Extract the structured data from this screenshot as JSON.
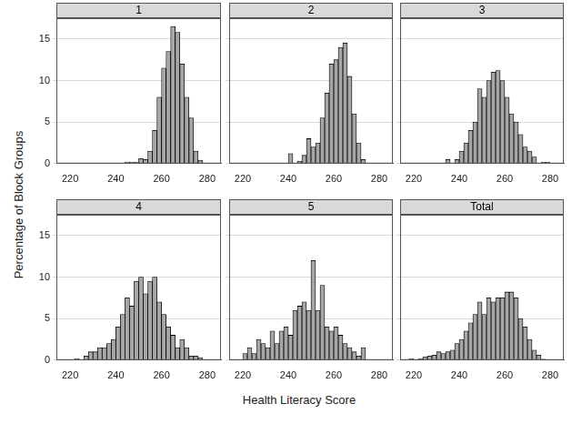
{
  "xlabel": "Health Literacy Score",
  "ylabel": "Percentage of Block Groups",
  "chart_data": [
    {
      "type": "histogram",
      "title": "1",
      "color": "#a6a6a6",
      "grid": true,
      "bins": [
        216,
        218,
        220,
        222,
        224,
        226,
        228,
        230,
        232,
        234,
        236,
        238,
        240,
        242,
        244,
        246,
        248,
        250,
        252,
        254,
        256,
        258,
        260,
        262,
        264,
        266,
        268,
        270,
        272,
        274,
        276,
        278,
        280,
        282
      ],
      "values": [
        0,
        0,
        0,
        0,
        0,
        0,
        0,
        0,
        0,
        0,
        0,
        0,
        0,
        0,
        0.2,
        0.2,
        0.2,
        0.6,
        0.5,
        1.5,
        4,
        8,
        11.5,
        13.5,
        16.5,
        15.8,
        12,
        8,
        5.5,
        1.5,
        0.4,
        0,
        0
      ],
      "xlim": [
        214,
        286
      ],
      "xticks": [
        220,
        240,
        260,
        280
      ],
      "ylim": [
        0,
        17.5
      ],
      "yticks": [
        0,
        5,
        10,
        15
      ]
    },
    {
      "type": "histogram",
      "title": "2",
      "color": "#a6a6a6",
      "grid": true,
      "tick_labels": "x",
      "bins": [
        216,
        218,
        220,
        222,
        224,
        226,
        228,
        230,
        232,
        234,
        236,
        238,
        240,
        242,
        244,
        246,
        248,
        250,
        252,
        254,
        256,
        258,
        260,
        262,
        264,
        266,
        268,
        270,
        272,
        274,
        276,
        278,
        280,
        282
      ],
      "values": [
        0,
        0,
        0,
        0,
        0,
        0,
        0,
        0,
        0,
        0,
        0,
        0,
        1.2,
        0,
        0.3,
        1,
        3,
        2,
        2.5,
        5.5,
        8.5,
        12,
        12.5,
        14,
        14.5,
        10.5,
        6,
        2.5,
        0.5,
        0,
        0,
        0,
        0
      ],
      "xlim": [
        214,
        286
      ],
      "xticks": [
        220,
        240,
        260,
        280
      ],
      "ylim": [
        0,
        17.5
      ],
      "yticks": [
        0,
        5,
        10,
        15
      ]
    },
    {
      "type": "histogram",
      "title": "3",
      "color": "#a6a6a6",
      "grid": true,
      "tick_labels": "x",
      "bins": [
        216,
        218,
        220,
        222,
        224,
        226,
        228,
        230,
        232,
        234,
        236,
        238,
        240,
        242,
        244,
        246,
        248,
        250,
        252,
        254,
        256,
        258,
        260,
        262,
        264,
        266,
        268,
        270,
        272,
        274,
        276,
        278,
        280,
        282
      ],
      "values": [
        0,
        0,
        0,
        0,
        0,
        0,
        0,
        0,
        0,
        0.5,
        0,
        0.5,
        1.5,
        2.5,
        4,
        5,
        9,
        8,
        10,
        11,
        11.2,
        10,
        8,
        6,
        5,
        3.5,
        2,
        1.5,
        0.8,
        0,
        0.2,
        0.2,
        0
      ],
      "xlim": [
        214,
        286
      ],
      "xticks": [
        220,
        240,
        260,
        280
      ],
      "ylim": [
        0,
        17.5
      ],
      "yticks": [
        0,
        5,
        10,
        15
      ]
    },
    {
      "type": "histogram",
      "title": "4",
      "color": "#a6a6a6",
      "grid": true,
      "bins": [
        216,
        218,
        220,
        222,
        224,
        226,
        228,
        230,
        232,
        234,
        236,
        238,
        240,
        242,
        244,
        246,
        248,
        250,
        252,
        254,
        256,
        258,
        260,
        262,
        264,
        266,
        268,
        270,
        272,
        274,
        276,
        278,
        280,
        282
      ],
      "values": [
        0,
        0,
        0,
        0.2,
        0,
        0.5,
        1,
        1,
        1.5,
        1.5,
        2,
        2.5,
        4,
        5.5,
        7.5,
        6.5,
        9.5,
        10,
        8,
        9.5,
        10,
        7,
        5.5,
        4,
        3,
        1.5,
        2.5,
        1.5,
        0.5,
        0.5,
        0.3,
        0,
        0
      ],
      "xlim": [
        214,
        286
      ],
      "xticks": [
        220,
        240,
        260,
        280
      ],
      "ylim": [
        0,
        17.5
      ],
      "yticks": [
        0,
        5,
        10,
        15
      ]
    },
    {
      "type": "histogram",
      "title": "5",
      "color": "#a6a6a6",
      "grid": true,
      "tick_labels": "x",
      "bins": [
        216,
        218,
        220,
        222,
        224,
        226,
        228,
        230,
        232,
        234,
        236,
        238,
        240,
        242,
        244,
        246,
        248,
        250,
        252,
        254,
        256,
        258,
        260,
        262,
        264,
        266,
        268,
        270,
        272,
        274,
        276,
        278,
        280,
        282
      ],
      "values": [
        0,
        0,
        0.8,
        1.5,
        0.8,
        2.5,
        2,
        1.5,
        3.5,
        2,
        3.5,
        4,
        3,
        6,
        6.5,
        7,
        6,
        12,
        6,
        9,
        4,
        3.5,
        4,
        3,
        2,
        1.5,
        1,
        0.5,
        1.5,
        0,
        0,
        0,
        0
      ],
      "xlim": [
        214,
        286
      ],
      "xticks": [
        220,
        240,
        260,
        280
      ],
      "ylim": [
        0,
        17.5
      ],
      "yticks": [
        0,
        5,
        10,
        15
      ]
    },
    {
      "type": "histogram",
      "title": "Total",
      "color": "#a6a6a6",
      "grid": true,
      "tick_labels": "x",
      "bins": [
        216,
        218,
        220,
        222,
        224,
        226,
        228,
        230,
        232,
        234,
        236,
        238,
        240,
        242,
        244,
        246,
        248,
        250,
        252,
        254,
        256,
        258,
        260,
        262,
        264,
        266,
        268,
        270,
        272,
        274,
        276,
        278,
        280,
        282
      ],
      "values": [
        0,
        0.2,
        0,
        0.2,
        0.4,
        0.5,
        0.6,
        1,
        0.8,
        1,
        1.2,
        2,
        2.5,
        3.5,
        4.5,
        5.5,
        7,
        5.5,
        7.5,
        7,
        7.5,
        7.5,
        8.2,
        8.2,
        7.5,
        5,
        4,
        2.5,
        1.2,
        0.6,
        0.1,
        0,
        0
      ],
      "xlim": [
        214,
        286
      ],
      "xticks": [
        220,
        240,
        260,
        280
      ],
      "ylim": [
        0,
        17.5
      ],
      "yticks": [
        0,
        5,
        10,
        15
      ]
    }
  ]
}
